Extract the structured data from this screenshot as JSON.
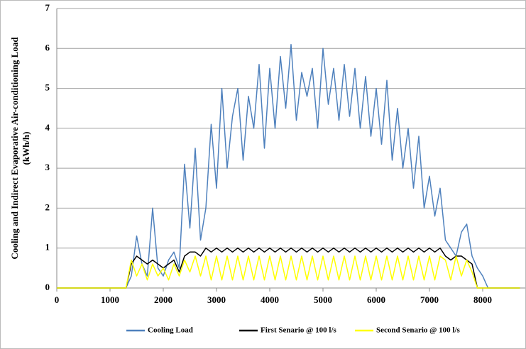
{
  "chart_data": {
    "type": "line",
    "ylabel": [
      "Cooling and Indirect Evaporative Air-conditioning Load",
      "(kWh/h)"
    ],
    "x": [
      0,
      100,
      200,
      300,
      400,
      500,
      600,
      700,
      800,
      900,
      1000,
      1100,
      1200,
      1300,
      1400,
      1500,
      1600,
      1700,
      1800,
      1900,
      2000,
      2100,
      2200,
      2300,
      2400,
      2500,
      2600,
      2700,
      2800,
      2900,
      3000,
      3100,
      3200,
      3300,
      3400,
      3500,
      3600,
      3700,
      3800,
      3900,
      4000,
      4100,
      4200,
      4300,
      4400,
      4500,
      4600,
      4700,
      4800,
      4900,
      5000,
      5100,
      5200,
      5300,
      5400,
      5500,
      5600,
      5700,
      5800,
      5900,
      6000,
      6100,
      6200,
      6300,
      6400,
      6500,
      6600,
      6700,
      6800,
      6900,
      7000,
      7100,
      7200,
      7300,
      7400,
      7500,
      7600,
      7700,
      7800,
      7900,
      8000,
      8100,
      8200,
      8300,
      8400,
      8500,
      8600,
      8700
    ],
    "series": [
      {
        "name": "Cooling Load",
        "color": "#4f81bd",
        "values": [
          0,
          0,
          0,
          0,
          0,
          0,
          0,
          0,
          0,
          0,
          0,
          0,
          0,
          0,
          0.3,
          1.3,
          0.6,
          0.3,
          2.0,
          0.5,
          0.3,
          0.7,
          0.9,
          0.5,
          3.1,
          1.5,
          3.5,
          1.2,
          2.0,
          4.1,
          2.5,
          5.0,
          3.0,
          4.3,
          5.0,
          3.2,
          4.8,
          4.0,
          5.6,
          3.5,
          5.5,
          4.0,
          5.8,
          4.5,
          6.1,
          4.2,
          5.4,
          4.8,
          5.5,
          4.0,
          6.0,
          4.6,
          5.5,
          4.2,
          5.6,
          4.3,
          5.5,
          4.0,
          5.3,
          3.8,
          5.0,
          3.6,
          5.2,
          3.2,
          4.5,
          3.0,
          4.0,
          2.5,
          3.8,
          2.0,
          2.8,
          1.8,
          2.5,
          1.2,
          1.0,
          0.8,
          1.4,
          1.6,
          0.8,
          0.5,
          0.3,
          0,
          0,
          0,
          0,
          0,
          0,
          0
        ]
      },
      {
        "name": "First Senario @ 100 l/s",
        "color": "#000000",
        "values": [
          0,
          0,
          0,
          0,
          0,
          0,
          0,
          0,
          0,
          0,
          0,
          0,
          0,
          0,
          0.6,
          0.8,
          0.7,
          0.6,
          0.7,
          0.6,
          0.5,
          0.6,
          0.7,
          0.4,
          0.8,
          0.9,
          0.9,
          0.8,
          1.0,
          0.9,
          1.0,
          0.9,
          1.0,
          0.9,
          1.0,
          0.9,
          1.0,
          0.9,
          1.0,
          0.9,
          1.0,
          0.9,
          1.0,
          0.9,
          1.0,
          0.9,
          1.0,
          0.9,
          1.0,
          0.9,
          1.0,
          0.9,
          1.0,
          0.9,
          1.0,
          0.9,
          1.0,
          0.9,
          1.0,
          0.9,
          1.0,
          0.9,
          1.0,
          0.9,
          1.0,
          0.9,
          1.0,
          0.9,
          1.0,
          0.9,
          1.0,
          0.9,
          1.0,
          0.8,
          0.7,
          0.8,
          0.8,
          0.7,
          0.6,
          0,
          0,
          0,
          0,
          0,
          0,
          0,
          0,
          0
        ]
      },
      {
        "name": "Second Senario @ 100 l/s",
        "color": "#ffff00",
        "values": [
          0,
          0,
          0,
          0,
          0,
          0,
          0,
          0,
          0,
          0,
          0,
          0,
          0,
          0,
          0.7,
          0.3,
          0.6,
          0.2,
          0.6,
          0.3,
          0.5,
          0.2,
          0.6,
          0.3,
          0.7,
          0.4,
          0.8,
          0.3,
          0.8,
          0.2,
          0.8,
          0.2,
          0.8,
          0.2,
          0.8,
          0.2,
          0.8,
          0.2,
          0.8,
          0.2,
          0.8,
          0.2,
          0.8,
          0.2,
          0.8,
          0.2,
          0.8,
          0.2,
          0.8,
          0.2,
          0.8,
          0.2,
          0.8,
          0.2,
          0.8,
          0.2,
          0.8,
          0.2,
          0.8,
          0.2,
          0.8,
          0.2,
          0.8,
          0.2,
          0.8,
          0.2,
          0.8,
          0.2,
          0.8,
          0.2,
          0.8,
          0.2,
          0.8,
          0.7,
          0.2,
          0.8,
          0.3,
          0.7,
          0.4,
          0,
          0,
          0,
          0,
          0,
          0,
          0,
          0,
          0
        ]
      }
    ],
    "xlim": [
      0,
      8800
    ],
    "xticks": [
      0,
      1000,
      2000,
      3000,
      4000,
      5000,
      6000,
      7000,
      8000
    ],
    "ylim": [
      0,
      7
    ],
    "yticks": [
      0,
      1,
      2,
      3,
      4,
      5,
      6,
      7
    ],
    "grid": true,
    "legend": "bottom"
  }
}
